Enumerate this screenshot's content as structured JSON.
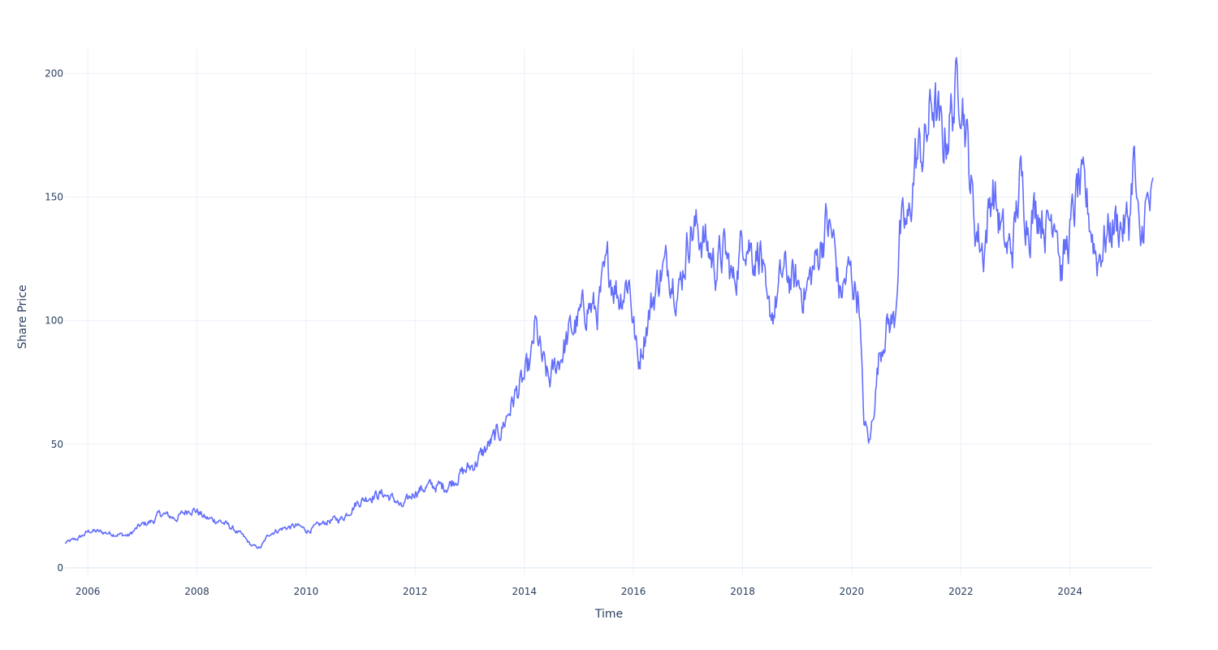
{
  "chart_data": {
    "type": "line",
    "title": "",
    "xlabel": "Time",
    "ylabel": "Share Price",
    "xlim": [
      "2005-08-01",
      "2025-07-10"
    ],
    "ylim": [
      -3,
      210
    ],
    "x_ticks": [
      "2006",
      "2008",
      "2010",
      "2012",
      "2014",
      "2016",
      "2018",
      "2020",
      "2022",
      "2024"
    ],
    "y_ticks": [
      0,
      50,
      100,
      150,
      200
    ],
    "grid": true,
    "legend": "none",
    "line_color": "#636efa",
    "series": [
      {
        "x": [
          "2005-08-01",
          "2005-11-01",
          "2006-01-15",
          "2006-06-01",
          "2006-10-01",
          "2006-12-15",
          "2007-03-15",
          "2007-05-01",
          "2007-08-15",
          "2007-10-01",
          "2007-11-15",
          "2008-01-01",
          "2008-03-01",
          "2008-06-01",
          "2008-08-01",
          "2008-11-01",
          "2009-01-01",
          "2009-03-01",
          "2009-05-01",
          "2009-08-01",
          "2009-11-01",
          "2010-01-15",
          "2010-06-01",
          "2010-09-01",
          "2010-12-01",
          "2011-03-01",
          "2011-06-01",
          "2011-09-01",
          "2011-10-01",
          "2012-01-01",
          "2012-04-01",
          "2012-08-01",
          "2012-11-01",
          "2013-02-01",
          "2013-05-01",
          "2013-08-01",
          "2013-11-01",
          "2014-01-01",
          "2014-02-15",
          "2014-03-15",
          "2014-05-01",
          "2014-06-15",
          "2014-09-01",
          "2014-11-01",
          "2015-01-01",
          "2015-03-01",
          "2015-05-01",
          "2015-07-15",
          "2015-10-01",
          "2015-12-01",
          "2016-02-01",
          "2016-04-01",
          "2016-07-01",
          "2016-09-01",
          "2016-11-01",
          "2017-01-15",
          "2017-04-01",
          "2017-07-01",
          "2017-09-01",
          "2017-11-01",
          "2018-01-15",
          "2018-03-15",
          "2018-05-01",
          "2018-06-15",
          "2018-08-01",
          "2018-10-01",
          "2018-12-15",
          "2019-03-01",
          "2019-05-15",
          "2019-07-15",
          "2019-09-01",
          "2019-10-15",
          "2019-12-15",
          "2020-02-01",
          "2020-02-20",
          "2020-03-20",
          "2020-05-01",
          "2020-07-01",
          "2020-08-15",
          "2020-10-15",
          "2020-11-15",
          "2021-01-15",
          "2021-03-01",
          "2021-05-01",
          "2021-07-01",
          "2021-09-01",
          "2021-11-01",
          "2022-01-01",
          "2022-02-15",
          "2022-04-01",
          "2022-06-01",
          "2022-08-01",
          "2022-09-15",
          "2022-11-01",
          "2022-12-15",
          "2023-02-01",
          "2023-04-01",
          "2023-06-01",
          "2023-08-01",
          "2023-10-01",
          "2023-11-01",
          "2024-01-01",
          "2024-03-01",
          "2024-05-01",
          "2024-07-01",
          "2024-09-01",
          "2024-11-01",
          "2025-01-01",
          "2025-02-01",
          "2025-03-01",
          "2025-04-15",
          "2025-05-15",
          "2025-07-10"
        ],
        "y": [
          10,
          12,
          15,
          14,
          13,
          17,
          19,
          22,
          20,
          22,
          24,
          23,
          20,
          19,
          17,
          13,
          9,
          8,
          14,
          16,
          17,
          15,
          19,
          20,
          26,
          29,
          30,
          27,
          24,
          31,
          33,
          33,
          38,
          42,
          49,
          56,
          70,
          76,
          83,
          98,
          83,
          75,
          86,
          95,
          100,
          107,
          103,
          122,
          110,
          118,
          82,
          100,
          120,
          122,
          112,
          138,
          135,
          122,
          128,
          115,
          137,
          127,
          130,
          100,
          105,
          120,
          115,
          112,
          125,
          140,
          132,
          110,
          120,
          112,
          110,
          60,
          50,
          85,
          98,
          100,
          135,
          138,
          165,
          170,
          190,
          170,
          185,
          200,
          170,
          140,
          128,
          155,
          140,
          128,
          130,
          157,
          140,
          147,
          138,
          148,
          120,
          135,
          155,
          145,
          125,
          135,
          140,
          138,
          140,
          168,
          125,
          145,
          147
        ]
      }
    ]
  }
}
